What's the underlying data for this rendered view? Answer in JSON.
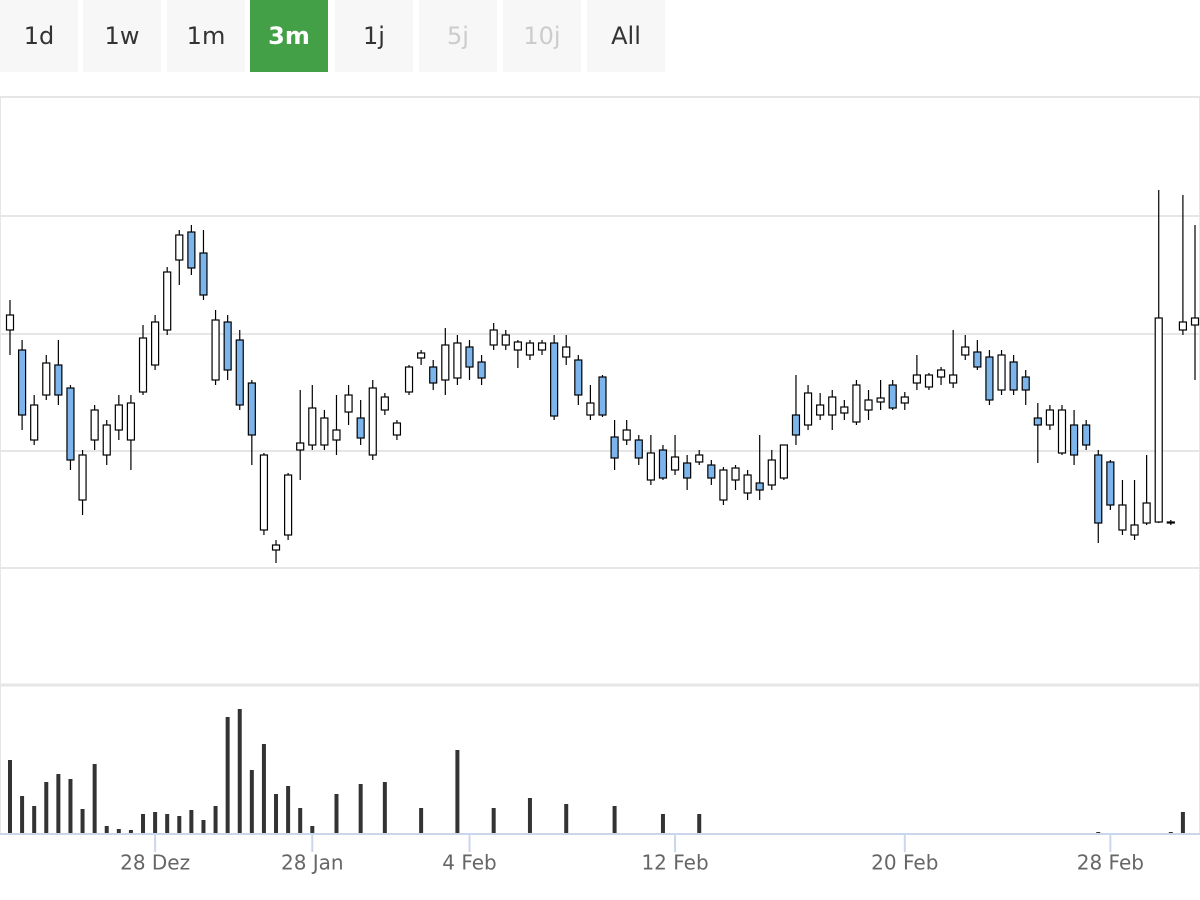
{
  "range_selector": {
    "buttons": [
      "1d",
      "1w",
      "1m",
      "3m",
      "1j",
      "5j",
      "10j",
      "All"
    ],
    "selected": 3,
    "disabled": [
      5,
      6
    ]
  },
  "chart_data": {
    "type": "candlestick",
    "up_color": "#ffffff",
    "down_color": "#7cb5ec",
    "line_color": "#000000",
    "ylim": [
      0,
      588
    ],
    "yticks": [
      117,
      234,
      351,
      469,
      588
    ],
    "grid": true,
    "xticks": [
      {
        "value": 12,
        "label": "28 Dez"
      },
      {
        "value": 25,
        "label": "28 Jan"
      },
      {
        "value": 38,
        "label": "4 Feb"
      },
      {
        "value": 55,
        "label": "12 Feb"
      },
      {
        "value": 74,
        "label": "20 Feb"
      },
      {
        "value": 91,
        "label": "28 Feb"
      }
    ],
    "open": [
      355,
      335,
      245,
      290,
      320,
      297,
      185,
      245,
      230,
      255,
      245,
      293,
      320,
      355,
      425,
      453,
      432,
      305,
      363,
      345,
      302,
      155,
      135,
      150,
      235,
      240,
      240,
      245,
      273,
      267,
      230,
      275,
      250,
      293,
      327,
      318,
      305,
      307,
      338,
      323,
      340,
      340,
      335,
      330,
      335,
      342,
      328,
      325,
      270,
      308,
      248,
      245,
      245,
      205,
      235,
      215,
      222,
      223,
      220,
      185,
      205,
      192,
      202,
      200,
      207,
      270,
      260,
      270,
      270,
      272,
      263,
      275,
      283,
      300,
      282,
      302,
      298,
      308,
      302,
      330,
      333,
      328,
      295,
      323,
      308,
      267,
      260,
      232,
      260,
      260,
      230,
      223,
      155,
      150,
      162,
      163,
      162,
      355,
      360
    ],
    "high": [
      385,
      345,
      290,
      330,
      345,
      300,
      235,
      280,
      265,
      290,
      290,
      360,
      370,
      418,
      455,
      460,
      455,
      375,
      370,
      355,
      305,
      232,
      145,
      212,
      295,
      300,
      275,
      290,
      300,
      285,
      305,
      292,
      265,
      320,
      335,
      325,
      357,
      350,
      345,
      330,
      362,
      355,
      345,
      345,
      345,
      350,
      350,
      330,
      300,
      310,
      265,
      265,
      250,
      250,
      240,
      250,
      230,
      235,
      225,
      218,
      220,
      215,
      250,
      235,
      240,
      310,
      300,
      292,
      295,
      285,
      305,
      295,
      305,
      305,
      293,
      330,
      312,
      318,
      355,
      350,
      345,
      335,
      335,
      330,
      315,
      282,
      280,
      280,
      275,
      265,
      235,
      225,
      205,
      205,
      230,
      495,
      165,
      490,
      460
    ],
    "low": [
      330,
      255,
      240,
      285,
      280,
      215,
      170,
      235,
      220,
      245,
      215,
      290,
      315,
      350,
      400,
      410,
      385,
      300,
      305,
      275,
      220,
      150,
      122,
      145,
      205,
      235,
      235,
      230,
      260,
      240,
      225,
      270,
      245,
      290,
      320,
      295,
      290,
      300,
      305,
      300,
      335,
      335,
      317,
      325,
      330,
      265,
      320,
      280,
      265,
      268,
      215,
      240,
      220,
      200,
      205,
      210,
      195,
      220,
      200,
      180,
      195,
      185,
      185,
      195,
      205,
      240,
      255,
      265,
      255,
      265,
      260,
      265,
      275,
      275,
      275,
      295,
      295,
      300,
      297,
      325,
      315,
      280,
      290,
      290,
      280,
      222,
      255,
      230,
      220,
      235,
      142,
      175,
      150,
      145,
      160,
      162,
      160,
      350,
      305
    ],
    "close": [
      370,
      270,
      280,
      322,
      290,
      225,
      230,
      275,
      260,
      280,
      282,
      347,
      363,
      413,
      450,
      417,
      390,
      365,
      315,
      280,
      250,
      230,
      140,
      210,
      242,
      277,
      267,
      255,
      290,
      247,
      297,
      288,
      262,
      318,
      332,
      302,
      340,
      342,
      318,
      307,
      355,
      350,
      343,
      342,
      342,
      269,
      338,
      290,
      282,
      270,
      227,
      255,
      227,
      232,
      207,
      228,
      207,
      230,
      207,
      215,
      217,
      210,
      195,
      225,
      240,
      250,
      292,
      280,
      288,
      278,
      300,
      285,
      287,
      277,
      288,
      310,
      310,
      315,
      310,
      338,
      318,
      285,
      330,
      295,
      295,
      260,
      275,
      275,
      230,
      240,
      162,
      180,
      180,
      160,
      182,
      367,
      163,
      363,
      367
    ],
    "volume": {
      "color": "#333333",
      "ylim": [
        0,
        150
      ],
      "values": [
        74,
        38,
        28,
        52,
        60,
        55,
        25,
        70,
        8,
        5,
        4,
        20,
        22,
        20,
        18,
        24,
        14,
        28,
        117,
        125,
        64,
        90,
        40,
        48,
        26,
        8,
        0,
        40,
        0,
        50,
        0,
        52,
        0,
        0,
        26,
        0,
        0,
        84,
        0,
        0,
        26,
        0,
        0,
        36,
        0,
        0,
        30,
        0,
        0,
        0,
        28,
        0,
        0,
        0,
        20,
        0,
        0,
        20,
        0,
        0,
        0,
        0,
        0,
        0,
        0,
        0,
        0,
        0,
        0,
        0,
        0,
        0,
        0,
        0,
        0,
        0,
        0,
        0,
        0,
        0,
        0,
        0,
        0,
        0,
        0,
        0,
        0,
        0,
        0,
        0,
        2,
        0,
        0,
        0,
        0,
        0,
        2,
        22,
        0
      ]
    }
  }
}
